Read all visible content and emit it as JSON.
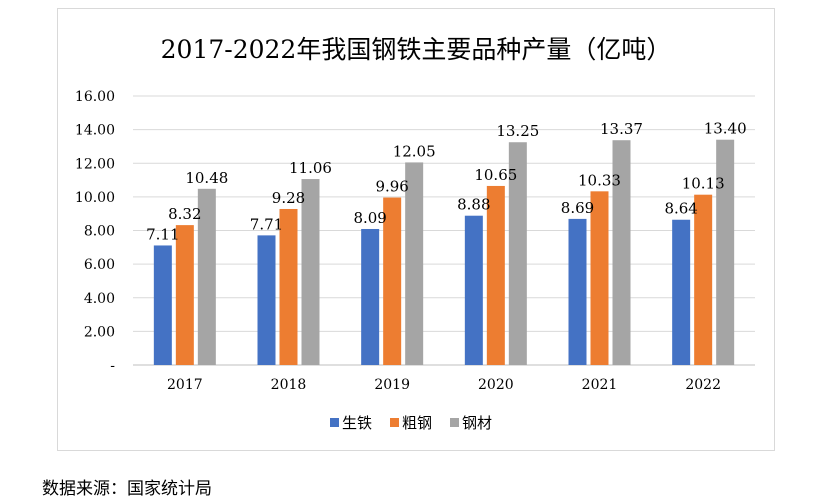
{
  "chart_data": {
    "type": "bar",
    "title": "2017-2022年我国钢铁主要品种产量（亿吨）",
    "categories": [
      "2017",
      "2018",
      "2019",
      "2020",
      "2021",
      "2022"
    ],
    "series": [
      {
        "name": "生铁",
        "color": "#4472C4",
        "values": [
          7.11,
          7.71,
          8.09,
          8.88,
          8.69,
          8.64
        ],
        "labels": [
          "7.11",
          "7.71",
          "8.09",
          "8.88",
          "8.69",
          "8.64"
        ]
      },
      {
        "name": "粗钢",
        "color": "#ED7D31",
        "values": [
          8.32,
          9.28,
          9.96,
          10.65,
          10.33,
          10.13
        ],
        "labels": [
          "8.32",
          "9.28",
          "9.96",
          "10.65",
          "10.33",
          "10.13"
        ]
      },
      {
        "name": "钢材",
        "color": "#A5A5A5",
        "values": [
          10.48,
          11.06,
          12.05,
          13.25,
          13.37,
          13.4
        ],
        "labels": [
          "10.48",
          "11.06",
          "12.05",
          "13.25",
          "13.37",
          "13.40"
        ]
      }
    ],
    "ylim": [
      0,
      16
    ],
    "yticks": [
      0,
      2,
      4,
      6,
      8,
      10,
      12,
      14,
      16
    ],
    "ytick_labels": [
      "-",
      "2.00",
      "4.00",
      "6.00",
      "8.00",
      "10.00",
      "12.00",
      "14.00",
      "16.00"
    ],
    "xlabel": "",
    "ylabel": "",
    "grid": true,
    "legend": "bottom"
  },
  "source": "数据来源：国家统计局"
}
